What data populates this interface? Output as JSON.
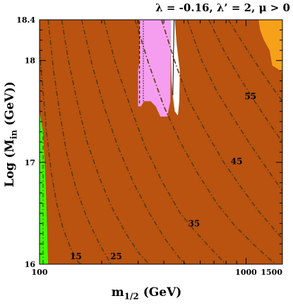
{
  "chart_data": {
    "type": "contour",
    "title_parts": {
      "lam": "λ = -0.16,",
      "lamp": "λ’ = 2,",
      "mu": "μ > 0"
    },
    "xlabel": "m",
    "xlabel_sub": "1/2",
    "xlabel_unit": " (GeV)",
    "ylabel": "Log (M",
    "ylabel_sub": "in",
    "ylabel_unit": " (GeV))",
    "xscale": "log",
    "xlim": [
      100,
      1500
    ],
    "ylim": [
      16,
      18.4
    ],
    "x_ticks": [
      {
        "value": 100,
        "label": "100"
      },
      {
        "value": 1000,
        "label": "1000"
      },
      {
        "value": 1500,
        "label": "1500"
      }
    ],
    "y_ticks": [
      {
        "value": 16,
        "label": "16"
      },
      {
        "value": 17,
        "label": "17"
      },
      {
        "value": 18,
        "label": "18"
      },
      {
        "value": 18.4,
        "label": "18.4"
      }
    ],
    "colors": {
      "background": "#b9530f",
      "green": "#3fff00",
      "pink": "#f59ef0",
      "white": "#ffffff",
      "orange": "#f7a11a",
      "contour": "#5a3a12"
    },
    "regions": [
      {
        "name": "green",
        "points": [
          [
            100,
            16
          ],
          [
            100,
            17.5
          ],
          [
            104,
            17.3
          ],
          [
            107,
            16.8
          ],
          [
            110,
            16
          ]
        ]
      },
      {
        "name": "pink",
        "points": [
          [
            300,
            17.55
          ],
          [
            310,
            17.55
          ],
          [
            320,
            17.6
          ],
          [
            345,
            17.6
          ],
          [
            365,
            17.55
          ],
          [
            385,
            17.45
          ],
          [
            415,
            17.45
          ],
          [
            430,
            17.6
          ],
          [
            432,
            18.4
          ],
          [
            305,
            18.4
          ],
          [
            305,
            18.0
          ],
          [
            300,
            17.9
          ]
        ]
      },
      {
        "name": "white",
        "points": [
          [
            432,
            18.4
          ],
          [
            432,
            18.1
          ],
          [
            436,
            17.8
          ],
          [
            442,
            17.65
          ],
          [
            452,
            17.5
          ],
          [
            468,
            17.46
          ],
          [
            475,
            17.6
          ],
          [
            478,
            17.9
          ],
          [
            462,
            18.15
          ],
          [
            452,
            18.4
          ]
        ]
      },
      {
        "name": "orange",
        "points": [
          [
            1150,
            18.4
          ],
          [
            1170,
            18.3
          ],
          [
            1220,
            18.2
          ],
          [
            1300,
            18.1
          ],
          [
            1340,
            17.95
          ],
          [
            1420,
            17.92
          ],
          [
            1500,
            17.88
          ],
          [
            1500,
            18.4
          ]
        ]
      }
    ],
    "contours": [
      {
        "label": "15",
        "label_at": [
          150,
          16.05
        ],
        "points": [
          [
            100,
            18.1
          ],
          [
            104,
            17.7
          ],
          [
            108,
            17.3
          ],
          [
            114,
            16.9
          ],
          [
            121,
            16.6
          ],
          [
            130,
            16.35
          ],
          [
            142,
            16.15
          ],
          [
            154,
            16.02
          ],
          [
            160,
            16
          ]
        ]
      },
      {
        "label": "",
        "points": [
          [
            110,
            18.4
          ],
          [
            117,
            17.9
          ],
          [
            125,
            17.5
          ],
          [
            135,
            17.1
          ],
          [
            150,
            16.75
          ],
          [
            170,
            16.45
          ],
          [
            195,
            16.2
          ],
          [
            222,
            16
          ]
        ]
      },
      {
        "label": "25",
        "label_at": [
          235,
          16.05
        ],
        "points": [
          [
            128,
            18.4
          ],
          [
            138,
            18.0
          ],
          [
            152,
            17.6
          ],
          [
            170,
            17.2
          ],
          [
            195,
            16.85
          ],
          [
            225,
            16.55
          ],
          [
            262,
            16.3
          ],
          [
            305,
            16.1
          ],
          [
            340,
            16
          ]
        ]
      },
      {
        "label": "",
        "points": [
          [
            160,
            18.4
          ],
          [
            180,
            17.95
          ],
          [
            205,
            17.55
          ],
          [
            240,
            17.15
          ],
          [
            285,
            16.8
          ],
          [
            340,
            16.5
          ],
          [
            405,
            16.25
          ],
          [
            480,
            16.05
          ],
          [
            510,
            16
          ]
        ]
      },
      {
        "label": "35",
        "label_at": [
          560,
          16.37
        ],
        "points": [
          [
            205,
            18.4
          ],
          [
            235,
            17.95
          ],
          [
            275,
            17.55
          ],
          [
            325,
            17.15
          ],
          [
            395,
            16.8
          ],
          [
            480,
            16.5
          ],
          [
            580,
            16.3
          ],
          [
            700,
            16.12
          ],
          [
            800,
            16
          ]
        ]
      },
      {
        "label": "",
        "points": [
          [
            290,
            18.4
          ],
          [
            340,
            17.95
          ],
          [
            400,
            17.55
          ],
          [
            480,
            17.2
          ],
          [
            580,
            16.9
          ],
          [
            720,
            16.6
          ],
          [
            880,
            16.38
          ],
          [
            1080,
            16.2
          ],
          [
            1300,
            16.05
          ],
          [
            1400,
            16
          ]
        ]
      },
      {
        "label": "45",
        "label_at": [
          900,
          16.98
        ],
        "points": [
          [
            390,
            18.4
          ],
          [
            450,
            18.0
          ],
          [
            530,
            17.6
          ],
          [
            640,
            17.3
          ],
          [
            780,
            17.0
          ],
          [
            950,
            16.75
          ],
          [
            1150,
            16.52
          ],
          [
            1400,
            16.32
          ],
          [
            1500,
            16.25
          ]
        ]
      },
      {
        "label": "",
        "points": [
          [
            520,
            18.4
          ],
          [
            610,
            18.0
          ],
          [
            720,
            17.7
          ],
          [
            860,
            17.45
          ],
          [
            1030,
            17.2
          ],
          [
            1250,
            16.95
          ],
          [
            1500,
            16.72
          ]
        ]
      },
      {
        "label": "55",
        "label_at": [
          1050,
          17.62
        ],
        "points": [
          [
            660,
            18.4
          ],
          [
            780,
            18.1
          ],
          [
            920,
            17.85
          ],
          [
            1100,
            17.6
          ],
          [
            1300,
            17.38
          ],
          [
            1500,
            17.2
          ]
        ]
      },
      {
        "label": "",
        "points": [
          [
            820,
            18.4
          ],
          [
            980,
            18.15
          ],
          [
            1180,
            17.9
          ],
          [
            1380,
            17.7
          ],
          [
            1500,
            17.6
          ]
        ]
      }
    ],
    "vertical_lines": [
      {
        "style": "dashed",
        "points": [
          [
            305,
            17.58
          ],
          [
            305,
            18.4
          ]
        ]
      },
      {
        "style": "dotted",
        "points": [
          [
            318,
            17.6
          ],
          [
            318,
            18.4
          ]
        ]
      },
      {
        "style": "solid",
        "points": [
          [
            442,
            17.66
          ],
          [
            445,
            18.0
          ],
          [
            448,
            18.4
          ]
        ]
      }
    ]
  }
}
